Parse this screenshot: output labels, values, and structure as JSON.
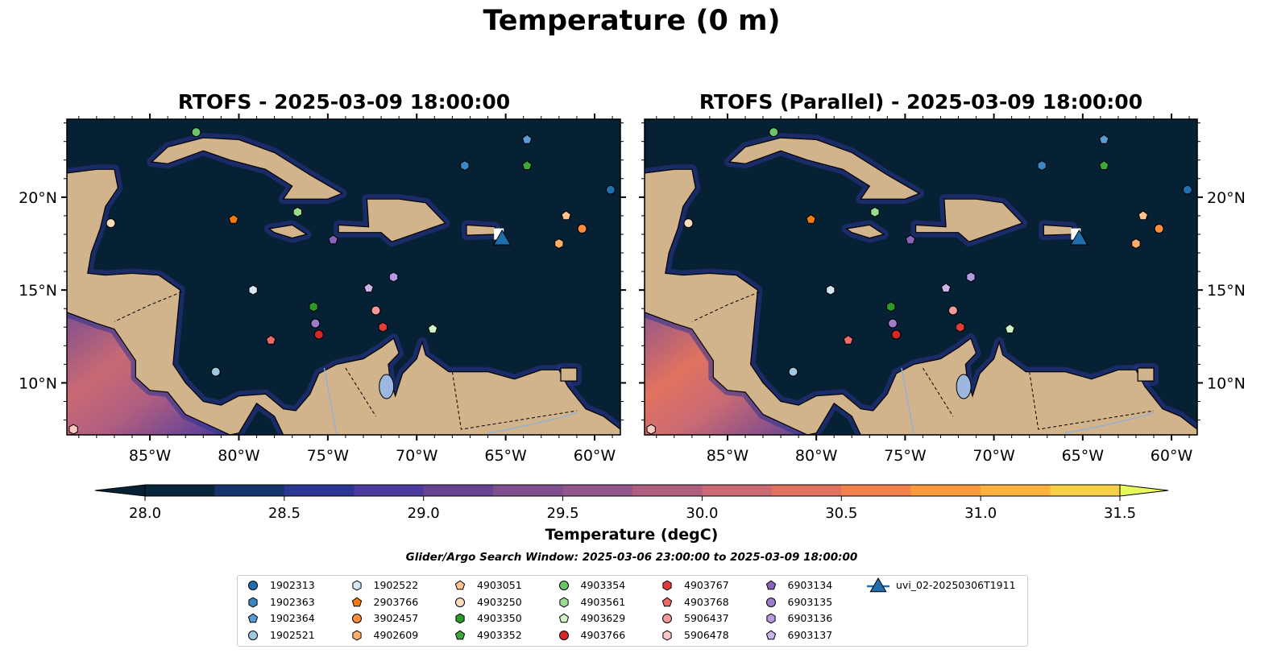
{
  "figure": {
    "title": "Temperature (0 m)"
  },
  "panels": [
    {
      "title": "RTOFS - 2025-03-09 18:00:00",
      "pacific_tint": "warm"
    },
    {
      "title": "RTOFS (Parallel) - 2025-03-09 18:00:00",
      "pacific_tint": "warmer"
    }
  ],
  "axes": {
    "lon_ticks": [
      {
        "value": -85,
        "label": "85°W"
      },
      {
        "value": -80,
        "label": "80°W"
      },
      {
        "value": -75,
        "label": "75°W"
      },
      {
        "value": -70,
        "label": "70°W"
      },
      {
        "value": -65,
        "label": "65°W"
      },
      {
        "value": -60,
        "label": "60°W"
      }
    ],
    "lat_ticks": [
      {
        "value": 10,
        "label": "10°N"
      },
      {
        "value": 15,
        "label": "15°N"
      },
      {
        "value": 20,
        "label": "20°N"
      }
    ],
    "extent": {
      "lon": [
        -89.67,
        -58.55
      ],
      "lat": [
        7.2,
        24.2
      ]
    }
  },
  "colorbar": {
    "label": "Temperature (degC)",
    "range": [
      28.0,
      31.5
    ],
    "step": 0.25,
    "tick_labels": [
      "28.0",
      "28.5",
      "29.0",
      "29.5",
      "30.0",
      "30.5",
      "31.0",
      "31.5"
    ],
    "under_color": "#062133",
    "over_color": "#e8fa5b",
    "colors": [
      "#08263b",
      "#13336a",
      "#2b3592",
      "#4c3b9c",
      "#664393",
      "#7e4f8e",
      "#94568a",
      "#b05e80",
      "#c96a74",
      "#e1725f",
      "#f4824c",
      "#fb9b3e",
      "#fbb23e",
      "#f7d04a"
    ]
  },
  "search_window": "Glider/Argo Search Window: 2025-03-06 23:00:00 to 2025-03-09 18:00:00",
  "colors": {
    "ocean": "#062133",
    "land": "#d2b48c",
    "lake": "#9db8e0"
  },
  "platforms": [
    {
      "name": "1902313",
      "marker": "circle",
      "color": "#1f6fb0",
      "lon": -59.1,
      "lat": 20.4
    },
    {
      "name": "1902363",
      "marker": "hexagon",
      "color": "#3a87c4",
      "lon": -67.3,
      "lat": 21.7
    },
    {
      "name": "1902364",
      "marker": "pentagon",
      "color": "#5a9bd4",
      "lon": -63.8,
      "lat": 23.1
    },
    {
      "name": "1902521",
      "marker": "circle",
      "color": "#9ecae1",
      "lon": -81.3,
      "lat": 10.6
    },
    {
      "name": "1902522",
      "marker": "hexagon",
      "color": "#d4e7f7",
      "lon": -79.2,
      "lat": 15.0
    },
    {
      "name": "2903766",
      "marker": "pentagon",
      "color": "#f57a0e",
      "lon": -80.3,
      "lat": 18.8
    },
    {
      "name": "3902457",
      "marker": "circle",
      "color": "#fd8d3c",
      "lon": -60.7,
      "lat": 18.3
    },
    {
      "name": "4902609",
      "marker": "hexagon",
      "color": "#fdae6b",
      "lon": -62.0,
      "lat": 17.5
    },
    {
      "name": "4903051",
      "marker": "pentagon",
      "color": "#fdc48f",
      "lon": -61.6,
      "lat": 19.0
    },
    {
      "name": "4903250",
      "marker": "circle",
      "color": "#fddcbc",
      "lon": -87.2,
      "lat": 18.6
    },
    {
      "name": "4903350",
      "marker": "hexagon",
      "color": "#2a9a2a",
      "lon": -75.8,
      "lat": 14.1
    },
    {
      "name": "4903352",
      "marker": "pentagon",
      "color": "#3aa83a",
      "lon": -63.8,
      "lat": 21.7
    },
    {
      "name": "4903354",
      "marker": "circle",
      "color": "#6cc56a",
      "lon": -82.4,
      "lat": 23.5
    },
    {
      "name": "4903561",
      "marker": "hexagon",
      "color": "#98dc8f",
      "lon": -76.7,
      "lat": 19.2
    },
    {
      "name": "4903629",
      "marker": "pentagon",
      "color": "#cff5c8",
      "lon": -69.1,
      "lat": 12.9
    },
    {
      "name": "4903766",
      "marker": "circle",
      "color": "#d62728",
      "lon": -75.5,
      "lat": 12.6
    },
    {
      "name": "4903767",
      "marker": "hexagon",
      "color": "#e03c3c",
      "lon": -71.9,
      "lat": 13.0
    },
    {
      "name": "4903768",
      "marker": "pentagon",
      "color": "#ec6a6a",
      "lon": -78.2,
      "lat": 12.3
    },
    {
      "name": "5906437",
      "marker": "circle",
      "color": "#f49a9a",
      "lon": -72.3,
      "lat": 13.9
    },
    {
      "name": "5906478",
      "marker": "hexagon",
      "color": "#fcc8c4",
      "lon": -89.3,
      "lat": 7.5
    },
    {
      "name": "6903134",
      "marker": "pentagon",
      "color": "#8a62b8",
      "lon": -74.7,
      "lat": 17.7
    },
    {
      "name": "6903135",
      "marker": "circle",
      "color": "#9e7ccc",
      "lon": -75.7,
      "lat": 13.2
    },
    {
      "name": "6903136",
      "marker": "hexagon",
      "color": "#b59ae0",
      "lon": -71.3,
      "lat": 15.7
    },
    {
      "name": "6903137",
      "marker": "pentagon",
      "color": "#cab4ee",
      "lon": -72.7,
      "lat": 15.1
    }
  ],
  "glider": {
    "name": "uvi_02-20250306T1911",
    "marker": "triangle",
    "color": "#1f6fb0",
    "lon": -65.2,
    "lat": 17.8
  }
}
